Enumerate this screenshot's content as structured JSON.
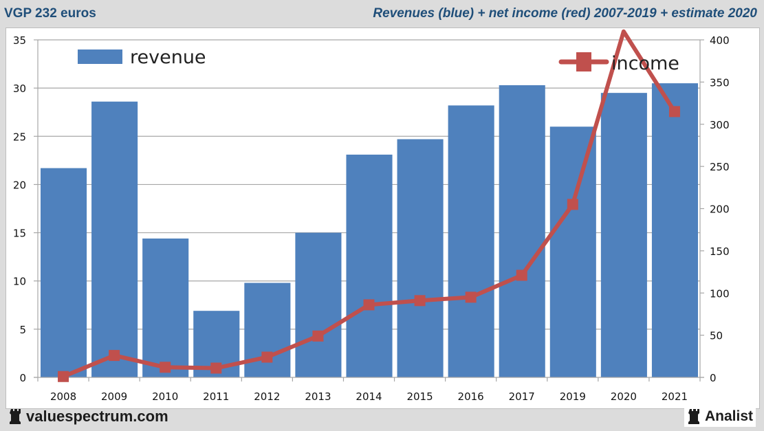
{
  "header": {
    "title_left": "VGP 232 euros",
    "title_right": "Revenues (blue) + net income (red) 2007-2019 + estimate 2020"
  },
  "footer": {
    "left_brand": "valuespectrum.com",
    "left_icon": "rook-icon",
    "right_brand": "Analist",
    "right_icon": "rook-icon"
  },
  "colors": {
    "revenue": "#4f81bd",
    "income": "#c0504d",
    "grid": "#a6a6a6",
    "title": "#1f4e79"
  },
  "chart_data": {
    "type": "bar+line",
    "title": "Revenues (blue) + net income (red) 2007-2019 + estimate 2020",
    "categories": [
      "2008",
      "2009",
      "2010",
      "2011",
      "2012",
      "2013",
      "2014",
      "2015",
      "2016",
      "2017",
      "2019",
      "2020",
      "2021"
    ],
    "series": [
      {
        "name": "revenue",
        "type": "bar",
        "axis": "left",
        "values": [
          21.7,
          28.6,
          14.4,
          6.9,
          9.8,
          15.0,
          23.1,
          24.7,
          28.2,
          30.3,
          26.0,
          29.5,
          30.5
        ]
      },
      {
        "name": "income",
        "type": "line",
        "axis": "right",
        "marker": "square",
        "values": [
          1,
          26,
          12,
          11,
          24,
          49,
          86,
          91,
          95,
          121,
          205,
          410,
          315
        ]
      }
    ],
    "y_left": {
      "min": 0,
      "max": 35,
      "ticks": [
        "0",
        "5",
        "10",
        "15",
        "20",
        "25",
        "30",
        "35"
      ]
    },
    "y_right": {
      "min": 0,
      "max": 400,
      "ticks": [
        "0",
        "50",
        "100",
        "150",
        "200",
        "250",
        "300",
        "350",
        "400"
      ]
    },
    "grid": true,
    "legend": [
      {
        "label": "revenue",
        "placement": "top-left"
      },
      {
        "label": "income",
        "placement": "top-right"
      }
    ]
  }
}
